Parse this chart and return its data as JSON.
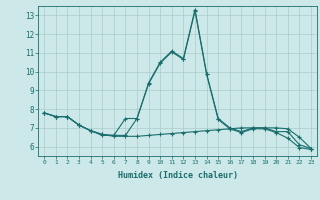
{
  "xlabel": "Humidex (Indice chaleur)",
  "x": [
    0,
    1,
    2,
    3,
    4,
    5,
    6,
    7,
    8,
    9,
    10,
    11,
    12,
    13,
    14,
    15,
    16,
    17,
    18,
    19,
    20,
    21,
    22,
    23
  ],
  "line1": [
    7.8,
    7.6,
    7.6,
    7.15,
    6.85,
    6.6,
    6.6,
    7.5,
    7.5,
    9.4,
    10.5,
    11.1,
    10.7,
    13.3,
    9.9,
    7.5,
    7.0,
    6.8,
    7.0,
    7.0,
    6.8,
    6.8,
    6.1,
    5.9
  ],
  "line2": [
    7.8,
    7.6,
    7.6,
    7.15,
    6.85,
    6.65,
    6.6,
    6.6,
    7.5,
    9.35,
    10.45,
    11.05,
    10.65,
    13.25,
    9.85,
    7.45,
    6.95,
    6.75,
    6.95,
    6.95,
    6.75,
    6.45,
    5.95,
    5.85
  ],
  "line3": [
    7.8,
    7.6,
    7.6,
    7.15,
    6.85,
    6.65,
    6.55,
    6.55,
    6.55,
    6.6,
    6.65,
    6.7,
    6.75,
    6.8,
    6.85,
    6.9,
    6.95,
    7.0,
    7.0,
    7.0,
    7.0,
    6.95,
    6.5,
    5.9
  ],
  "ylim": [
    5.5,
    13.5
  ],
  "yticks": [
    6,
    7,
    8,
    9,
    10,
    11,
    12,
    13
  ],
  "xlim": [
    -0.5,
    23.5
  ],
  "bg_color": "#cce8e8",
  "line_color": "#1a6e6e",
  "grid_color": "#aacccc",
  "tick_color": "#1a6e6e",
  "spine_color": "#1a6e6e"
}
